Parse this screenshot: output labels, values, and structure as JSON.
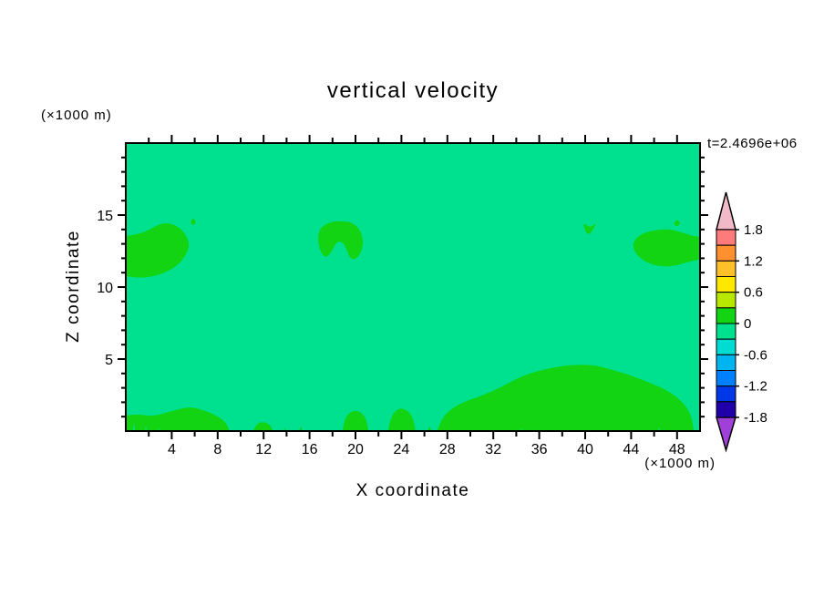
{
  "title": "vertical velocity",
  "time_label": "t=2.4696e+06",
  "axes": {
    "x_label": "X coordinate",
    "x_unit": "(×1000 m)",
    "y_label": "Z coordinate",
    "y_unit": "(×1000 m)"
  },
  "chart_data": {
    "type": "contour",
    "title": "vertical velocity",
    "time_annotation": "t=2.4696e+06",
    "xlabel": "X coordinate",
    "x_unit": "(×1000 m)",
    "ylabel": "Z coordinate",
    "y_unit": "(×1000 m)",
    "xlim": [
      0,
      50
    ],
    "ylim": [
      0,
      20
    ],
    "x_ticks": [
      4,
      8,
      12,
      16,
      20,
      24,
      28,
      32,
      36,
      40,
      44,
      48
    ],
    "x_minor_step": 2,
    "y_ticks": [
      5,
      10,
      15
    ],
    "y_minor_step": 1,
    "grid": false,
    "legend_position": "right-colorbar",
    "colors": {
      "background": "#00e18f",
      "updraft": "#12d412",
      "frame": "#000000"
    },
    "background_band": [
      -0.3,
      0
    ],
    "updraft_band": [
      0,
      0.3
    ],
    "colorbar": {
      "over_color": "#f2bac8",
      "under_color": "#a040d8",
      "bands": [
        {
          "min": 1.5,
          "max": 1.8,
          "color": "#ff7a7a"
        },
        {
          "min": 1.2,
          "max": 1.5,
          "color": "#ff9030"
        },
        {
          "min": 0.9,
          "max": 1.2,
          "color": "#ffc02a"
        },
        {
          "min": 0.6,
          "max": 0.9,
          "color": "#ffe800"
        },
        {
          "min": 0.3,
          "max": 0.6,
          "color": "#b8e800"
        },
        {
          "min": 0.0,
          "max": 0.3,
          "color": "#12d412"
        },
        {
          "min": -0.3,
          "max": 0.0,
          "color": "#00e18f"
        },
        {
          "min": -0.6,
          "max": -0.3,
          "color": "#00dcd2"
        },
        {
          "min": -0.9,
          "max": -0.6,
          "color": "#00b4f0"
        },
        {
          "min": -1.2,
          "max": -0.9,
          "color": "#0080ff"
        },
        {
          "min": -1.5,
          "max": -1.2,
          "color": "#0038e8"
        },
        {
          "min": -1.8,
          "max": -1.5,
          "color": "#2000a8"
        }
      ],
      "ticks": [
        {
          "v": 1.8,
          "label": "1.8"
        },
        {
          "v": 1.2,
          "label": "1.2"
        },
        {
          "v": 0.6,
          "label": "0.6"
        },
        {
          "v": 0,
          "label": "0"
        },
        {
          "v": -0.6,
          "label": "-0.6"
        },
        {
          "v": -1.2,
          "label": "-1.2"
        },
        {
          "v": -1.8,
          "label": "-1.8"
        }
      ]
    },
    "updraft_regions": [
      {
        "name": "upper-left-patch",
        "polygon": [
          [
            -1,
            10.9
          ],
          [
            1.2,
            10.6
          ],
          [
            2.8,
            10.8
          ],
          [
            4.2,
            11.3
          ],
          [
            5.1,
            12.0
          ],
          [
            5.6,
            12.9
          ],
          [
            5.2,
            13.7
          ],
          [
            4.4,
            14.3
          ],
          [
            3.3,
            14.5
          ],
          [
            2.3,
            14.1
          ],
          [
            1.3,
            13.7
          ],
          [
            -1,
            13.4
          ]
        ]
      },
      {
        "name": "upper-left-dot",
        "polygon": [
          [
            5.6,
            14.4
          ],
          [
            5.95,
            14.3
          ],
          [
            6.15,
            14.6
          ],
          [
            5.8,
            14.8
          ]
        ]
      },
      {
        "name": "mid-upper-patch",
        "polygon": [
          [
            16.7,
            13.4
          ],
          [
            16.9,
            12.5
          ],
          [
            17.4,
            12.0
          ],
          [
            17.9,
            12.4
          ],
          [
            18.3,
            13.1
          ],
          [
            18.8,
            13.2
          ],
          [
            19.2,
            12.7
          ],
          [
            19.5,
            12.0
          ],
          [
            20.0,
            11.9
          ],
          [
            20.5,
            12.4
          ],
          [
            20.7,
            13.2
          ],
          [
            20.4,
            14.0
          ],
          [
            19.7,
            14.5
          ],
          [
            18.7,
            14.6
          ],
          [
            17.7,
            14.5
          ],
          [
            16.9,
            14.1
          ]
        ]
      },
      {
        "name": "small-chevron-patch",
        "polygon": [
          [
            39.8,
            14.5
          ],
          [
            40.0,
            13.9
          ],
          [
            40.3,
            13.6
          ],
          [
            40.7,
            14.0
          ],
          [
            41.0,
            14.5
          ],
          [
            40.4,
            14.1
          ]
        ]
      },
      {
        "name": "upper-right-patch",
        "polygon": [
          [
            51,
            12.1
          ],
          [
            49.2,
            11.8
          ],
          [
            48.0,
            11.5
          ],
          [
            46.8,
            11.4
          ],
          [
            45.6,
            11.6
          ],
          [
            44.6,
            12.1
          ],
          [
            44.1,
            12.8
          ],
          [
            44.4,
            13.4
          ],
          [
            45.2,
            13.8
          ],
          [
            46.4,
            14.0
          ],
          [
            47.6,
            14.0
          ],
          [
            48.8,
            13.7
          ],
          [
            49.6,
            13.5
          ],
          [
            51,
            13.4
          ]
        ]
      },
      {
        "name": "upper-right-dot",
        "polygon": [
          [
            47.7,
            14.3
          ],
          [
            48.1,
            14.2
          ],
          [
            48.3,
            14.5
          ],
          [
            47.9,
            14.7
          ]
        ]
      },
      {
        "name": "bottom-left-patch",
        "polygon": [
          [
            -1,
            -1
          ],
          [
            -1,
            0.9
          ],
          [
            0.8,
            1.2
          ],
          [
            2.4,
            1.0
          ],
          [
            4.0,
            1.4
          ],
          [
            5.6,
            1.7
          ],
          [
            7.0,
            1.4
          ],
          [
            8.3,
            0.9
          ],
          [
            9.0,
            0.3
          ],
          [
            9.2,
            -1
          ]
        ]
      },
      {
        "name": "bottom-bump-12",
        "polygon": [
          [
            10.9,
            -1
          ],
          [
            11.2,
            0.4
          ],
          [
            12.0,
            0.7
          ],
          [
            12.8,
            0.3
          ],
          [
            13.0,
            -1
          ]
        ]
      },
      {
        "name": "bottom-spike-14",
        "polygon": [
          [
            13.6,
            -1
          ],
          [
            13.85,
            0.6
          ],
          [
            14.1,
            -1
          ]
        ]
      },
      {
        "name": "bottom-spike-15",
        "polygon": [
          [
            15.0,
            -1
          ],
          [
            15.25,
            0.7
          ],
          [
            15.5,
            -1
          ]
        ]
      },
      {
        "name": "bottom-bump-20",
        "polygon": [
          [
            18.7,
            -1
          ],
          [
            19.0,
            0.8
          ],
          [
            19.6,
            1.4
          ],
          [
            20.4,
            1.4
          ],
          [
            21.0,
            0.8
          ],
          [
            21.3,
            -1
          ]
        ]
      },
      {
        "name": "bottom-bump-24",
        "polygon": [
          [
            22.7,
            -1
          ],
          [
            23.0,
            0.9
          ],
          [
            23.7,
            1.6
          ],
          [
            24.5,
            1.5
          ],
          [
            25.1,
            0.8
          ],
          [
            25.4,
            -1
          ]
        ]
      },
      {
        "name": "bottom-spike-26",
        "polygon": [
          [
            26.1,
            -1
          ],
          [
            26.45,
            0.7
          ],
          [
            26.8,
            -1
          ]
        ]
      },
      {
        "name": "bottom-right-patch",
        "polygon": [
          [
            26.8,
            -1
          ],
          [
            27.3,
            0.6
          ],
          [
            28.2,
            1.5
          ],
          [
            29.6,
            2.1
          ],
          [
            31.2,
            2.5
          ],
          [
            32.8,
            3.1
          ],
          [
            34.4,
            3.8
          ],
          [
            36.4,
            4.3
          ],
          [
            38.6,
            4.6
          ],
          [
            40.8,
            4.6
          ],
          [
            42.6,
            4.2
          ],
          [
            44.2,
            3.8
          ],
          [
            45.8,
            3.3
          ],
          [
            47.2,
            2.8
          ],
          [
            48.4,
            2.1
          ],
          [
            49.3,
            1.1
          ],
          [
            49.6,
            -1
          ]
        ]
      }
    ],
    "downdraft_notches": [
      {
        "name": "notch-1",
        "polygon": [
          [
            0.55,
            -1
          ],
          [
            0.7,
            1.0
          ],
          [
            0.85,
            -1
          ]
        ]
      },
      {
        "name": "notch-2",
        "polygon": [
          [
            1.6,
            -1
          ],
          [
            1.75,
            0.8
          ],
          [
            1.9,
            -1
          ]
        ]
      },
      {
        "name": "notch-3",
        "polygon": [
          [
            2.7,
            -1
          ],
          [
            2.85,
            0.6
          ],
          [
            3.0,
            -1
          ]
        ]
      },
      {
        "name": "notch-4",
        "polygon": [
          [
            34.3,
            -1
          ],
          [
            34.45,
            0.6
          ],
          [
            34.6,
            -1
          ]
        ]
      },
      {
        "name": "notch-5",
        "polygon": [
          [
            35.0,
            -1
          ],
          [
            35.15,
            0.5
          ],
          [
            35.3,
            -1
          ]
        ]
      },
      {
        "name": "notch-6",
        "polygon": [
          [
            46.3,
            -1
          ],
          [
            46.45,
            0.7
          ],
          [
            46.6,
            -1
          ]
        ]
      }
    ]
  }
}
